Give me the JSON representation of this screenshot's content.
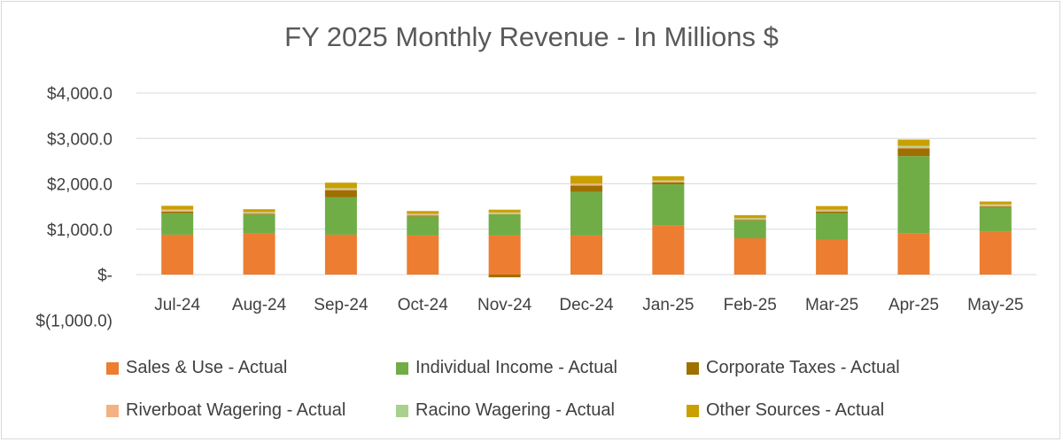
{
  "chart_data": {
    "type": "bar",
    "stacked": true,
    "title": "FY 2025 Monthly Revenue - In Millions $",
    "categories": [
      "Jul-24",
      "Aug-24",
      "Sep-24",
      "Oct-24",
      "Nov-24",
      "Dec-24",
      "Jan-25",
      "Feb-25",
      "Mar-25",
      "Apr-25",
      "May-25"
    ],
    "ylim": [
      -1000,
      4000
    ],
    "y_ticks": [
      {
        "value": 4000,
        "label": "$4,000.0"
      },
      {
        "value": 3000,
        "label": "$3,000.0"
      },
      {
        "value": 2000,
        "label": "$2,000.0"
      },
      {
        "value": 1000,
        "label": "$1,000.0"
      },
      {
        "value": 0,
        "label": "$-"
      },
      {
        "value": -1000,
        "label": "$(1,000.0)"
      }
    ],
    "grid": true,
    "legend_position": "bottom",
    "series": [
      {
        "name": "Sales & Use - Actual",
        "color": "#ED7D31",
        "values": [
          880,
          900,
          880,
          860,
          860,
          860,
          1080,
          800,
          770,
          910,
          940
        ]
      },
      {
        "name": "Individual Income - Actual",
        "color": "#70AD47",
        "values": [
          470,
          420,
          820,
          420,
          470,
          960,
          910,
          390,
          580,
          1700,
          550
        ]
      },
      {
        "name": "Corporate Taxes - Actual",
        "color": "#9E7000",
        "values": [
          40,
          20,
          160,
          20,
          -60,
          140,
          40,
          15,
          40,
          170,
          15
        ]
      },
      {
        "name": "Riverboat Wagering - Actual",
        "color": "#F4B183",
        "values": [
          30,
          25,
          30,
          25,
          25,
          30,
          30,
          25,
          25,
          35,
          30
        ]
      },
      {
        "name": "Racino Wagering - Actual",
        "color": "#A9D18E",
        "values": [
          15,
          15,
          15,
          15,
          15,
          15,
          15,
          15,
          15,
          20,
          15
        ]
      },
      {
        "name": "Other Sources - Actual",
        "color": "#C9A000",
        "values": [
          80,
          60,
          120,
          60,
          60,
          170,
          90,
          65,
          80,
          140,
          60
        ]
      }
    ]
  }
}
